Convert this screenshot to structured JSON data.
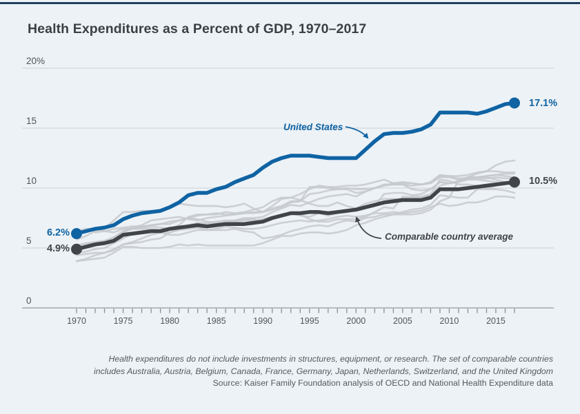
{
  "page": {
    "title": "Health Expenditures as a Percent of GDP, 1970–2017",
    "background_color": "#edf2f6",
    "top_rule_color": "#1f3e5e"
  },
  "annotations": {
    "us_label": "United States",
    "avg_label": "Comparable country average",
    "us_start_label": "6.2%",
    "us_end_label": "17.1%",
    "avg_start_label": "4.9%",
    "avg_end_label": "10.5%"
  },
  "footer": {
    "line1": "Health expenditures do not include investments in structures, equipment, or research. The set of comparable countries",
    "line2": "includes Australia, Austria, Belgium, Canada, France, Germany, Japan, Netherlands, Switzerland, and the United Kingdom",
    "line3": "Source: Kaiser Family Foundation analysis of OECD and National Health Expenditure data"
  },
  "colors": {
    "us": "#0f63a3",
    "average": "#414549",
    "country": "#c6c9cc",
    "grid": "#ccd0d4",
    "axis": "#a2a8ad",
    "tick": "#878d93",
    "axis_text": "#4e555c"
  },
  "chart_data": {
    "type": "line",
    "title": "Health Expenditures as a Percent of GDP, 1970–2017",
    "xlabel": "",
    "ylabel": "",
    "xlim": [
      1970,
      2017
    ],
    "ylim": [
      0,
      20
    ],
    "grid": "horizontal",
    "legend": "inline-annotations",
    "x_start_year": 1970,
    "x_tick_years": [
      1970,
      1975,
      1980,
      1985,
      1990,
      1995,
      2000,
      2005,
      2010,
      2015
    ],
    "x_tick_labels": [
      "1970",
      "1975",
      "1980",
      "1985",
      "1990",
      "1995",
      "2000",
      "2005",
      "2010",
      "2015"
    ],
    "y_ticks": [
      20,
      15,
      10,
      5,
      0
    ],
    "y_tick_labels": [
      "20%",
      "15",
      "10",
      "5",
      "0"
    ],
    "series": [
      {
        "name": "Australia",
        "role": "background",
        "values": [
          4.6,
          4.7,
          4.9,
          5.0,
          5.4,
          5.8,
          6.2,
          6.3,
          6.4,
          6.3,
          6.1,
          6.1,
          6.3,
          6.5,
          6.5,
          6.6,
          6.8,
          6.7,
          6.6,
          6.6,
          6.7,
          6.9,
          7.1,
          7.2,
          7.3,
          7.2,
          7.3,
          7.4,
          7.6,
          7.7,
          7.6,
          7.7,
          7.9,
          7.9,
          8.0,
          7.9,
          8.0,
          8.1,
          8.4,
          8.7,
          8.5,
          8.6,
          8.8,
          8.8,
          9.0,
          9.3,
          9.3,
          9.2
        ]
      },
      {
        "name": "Austria",
        "role": "background",
        "values": [
          5.2,
          5.3,
          5.4,
          5.6,
          5.9,
          6.4,
          6.7,
          6.9,
          7.3,
          7.4,
          7.5,
          7.6,
          7.4,
          7.3,
          7.5,
          7.6,
          7.7,
          7.8,
          7.9,
          7.9,
          8.0,
          8.2,
          8.4,
          8.8,
          8.9,
          9.5,
          9.6,
          9.8,
          9.9,
          10.0,
          9.9,
          9.9,
          10.0,
          10.2,
          10.3,
          10.3,
          10.2,
          10.3,
          10.4,
          10.9,
          10.9,
          10.7,
          10.9,
          10.9,
          11.0,
          11.1,
          11.0,
          10.9
        ]
      },
      {
        "name": "Belgium",
        "role": "background",
        "values": [
          3.9,
          4.1,
          4.4,
          4.6,
          4.8,
          5.3,
          5.5,
          5.8,
          6.1,
          6.3,
          6.3,
          6.6,
          6.7,
          6.9,
          7.0,
          7.0,
          7.2,
          7.3,
          7.4,
          7.4,
          7.2,
          7.5,
          7.7,
          7.9,
          7.7,
          7.6,
          7.9,
          7.7,
          7.9,
          8.1,
          8.1,
          8.3,
          8.5,
          9.5,
          9.6,
          9.6,
          9.4,
          9.5,
          9.9,
          10.5,
          10.4,
          10.5,
          10.7,
          10.7,
          10.6,
          10.5,
          10.4,
          10.3
        ]
      },
      {
        "name": "Canada",
        "role": "background",
        "values": [
          6.4,
          6.6,
          6.6,
          6.4,
          6.3,
          6.6,
          6.6,
          6.6,
          6.6,
          6.5,
          6.6,
          6.9,
          7.6,
          7.8,
          7.8,
          7.8,
          8.0,
          7.9,
          8.0,
          8.2,
          8.4,
          8.9,
          9.2,
          9.2,
          9.0,
          8.7,
          8.5,
          8.5,
          8.8,
          8.5,
          8.3,
          8.7,
          8.9,
          9.1,
          9.1,
          9.1,
          9.3,
          9.3,
          9.5,
          10.7,
          10.6,
          10.3,
          10.3,
          10.2,
          10.0,
          10.2,
          10.4,
          10.4
        ]
      },
      {
        "name": "France",
        "role": "background",
        "values": [
          5.2,
          5.4,
          5.5,
          5.6,
          5.8,
          6.4,
          6.6,
          6.7,
          6.9,
          7.0,
          7.0,
          7.3,
          7.5,
          7.7,
          7.8,
          7.9,
          7.8,
          7.8,
          7.9,
          8.0,
          8.0,
          8.3,
          8.5,
          8.9,
          8.9,
          10.1,
          10.1,
          10.0,
          9.9,
          9.9,
          9.6,
          9.7,
          10.0,
          10.2,
          10.4,
          10.4,
          10.4,
          10.3,
          10.4,
          11.0,
          11.0,
          11.0,
          11.1,
          11.3,
          11.4,
          11.4,
          11.3,
          11.3
        ]
      },
      {
        "name": "Germany",
        "role": "background",
        "values": [
          5.7,
          6.0,
          6.4,
          6.6,
          7.3,
          8.0,
          8.0,
          8.1,
          8.1,
          8.1,
          8.4,
          8.7,
          8.6,
          8.5,
          8.5,
          8.5,
          8.4,
          8.5,
          8.7,
          8.3,
          8.0,
          8.5,
          9.1,
          9.2,
          9.5,
          9.9,
          10.2,
          10.1,
          10.1,
          10.2,
          10.2,
          10.3,
          10.5,
          10.7,
          10.4,
          10.5,
          10.4,
          10.3,
          10.5,
          11.1,
          11.0,
          10.8,
          10.8,
          10.9,
          11.0,
          11.1,
          11.2,
          11.2
        ]
      },
      {
        "name": "Japan",
        "role": "background",
        "values": [
          4.4,
          4.5,
          4.6,
          4.6,
          4.9,
          5.3,
          5.4,
          5.5,
          5.7,
          5.8,
          6.3,
          6.5,
          6.6,
          6.7,
          6.5,
          6.5,
          6.5,
          6.6,
          6.4,
          6.3,
          5.8,
          5.9,
          6.1,
          6.4,
          6.6,
          6.8,
          6.9,
          6.8,
          7.1,
          7.3,
          7.2,
          7.5,
          7.6,
          7.8,
          7.8,
          7.8,
          7.8,
          7.9,
          8.2,
          8.9,
          9.2,
          10.6,
          10.8,
          10.8,
          10.8,
          10.9,
          10.8,
          10.8
        ]
      },
      {
        "name": "Netherlands",
        "role": "background",
        "values": [
          null,
          null,
          6.3,
          6.4,
          6.6,
          6.7,
          6.8,
          6.8,
          6.9,
          7.0,
          7.2,
          7.3,
          7.5,
          7.4,
          7.2,
          7.1,
          7.1,
          7.2,
          7.3,
          7.3,
          7.4,
          7.6,
          7.8,
          7.9,
          7.8,
          7.4,
          7.2,
          7.2,
          7.4,
          7.4,
          7.4,
          7.6,
          8.0,
          8.4,
          8.3,
          9.3,
          9.2,
          9.2,
          9.4,
          10.2,
          10.4,
          10.5,
          10.9,
          10.9,
          10.9,
          10.7,
          10.5,
          10.1
        ]
      },
      {
        "name": "Switzerland",
        "role": "background",
        "values": [
          4.9,
          5.1,
          5.2,
          5.4,
          5.7,
          6.3,
          6.6,
          6.7,
          6.8,
          6.7,
          6.6,
          6.7,
          6.9,
          7.1,
          7.1,
          7.2,
          7.3,
          7.3,
          7.5,
          7.5,
          7.6,
          8.0,
          8.3,
          8.6,
          8.5,
          8.8,
          9.1,
          9.3,
          9.4,
          9.5,
          9.3,
          9.7,
          10.0,
          10.3,
          10.3,
          10.3,
          9.9,
          9.8,
          9.9,
          10.5,
          10.4,
          10.6,
          10.9,
          11.2,
          11.4,
          11.9,
          12.2,
          12.3
        ]
      },
      {
        "name": "United Kingdom",
        "role": "background",
        "values": [
          3.9,
          4.0,
          4.1,
          4.2,
          4.6,
          5.1,
          5.1,
          5.0,
          5.0,
          5.0,
          5.1,
          5.3,
          5.2,
          5.3,
          5.2,
          5.2,
          5.2,
          5.2,
          5.2,
          5.2,
          5.4,
          5.7,
          6.0,
          6.0,
          6.2,
          6.3,
          6.3,
          6.2,
          6.3,
          6.5,
          6.9,
          7.1,
          7.4,
          7.6,
          7.8,
          8.0,
          8.2,
          8.3,
          8.6,
          9.4,
          9.3,
          9.2,
          9.2,
          9.9,
          9.9,
          9.9,
          9.8,
          9.6
        ]
      },
      {
        "name": "Comparable country average",
        "role": "average",
        "color": "#414549",
        "start_value": 4.9,
        "end_value": 10.5,
        "values": [
          4.9,
          5.1,
          5.3,
          5.4,
          5.6,
          6.1,
          6.2,
          6.3,
          6.4,
          6.4,
          6.6,
          6.7,
          6.8,
          6.9,
          6.8,
          6.9,
          7.0,
          7.0,
          7.0,
          7.1,
          7.2,
          7.5,
          7.7,
          7.9,
          7.9,
          8.0,
          8.0,
          7.9,
          8.0,
          8.1,
          8.2,
          8.4,
          8.6,
          8.8,
          8.9,
          9.0,
          9.0,
          9.0,
          9.2,
          9.9,
          9.9,
          9.9,
          10.0,
          10.1,
          10.2,
          10.3,
          10.4,
          10.5
        ]
      },
      {
        "name": "United States",
        "role": "primary",
        "color": "#0f63a3",
        "start_value": 6.2,
        "end_value": 17.1,
        "values": [
          6.2,
          6.4,
          6.6,
          6.7,
          6.9,
          7.4,
          7.7,
          7.9,
          8.0,
          8.1,
          8.4,
          8.8,
          9.4,
          9.6,
          9.6,
          9.9,
          10.1,
          10.5,
          10.8,
          11.1,
          11.7,
          12.2,
          12.5,
          12.7,
          12.7,
          12.7,
          12.6,
          12.5,
          12.5,
          12.5,
          12.5,
          13.2,
          13.9,
          14.5,
          14.6,
          14.6,
          14.7,
          14.9,
          15.3,
          16.3,
          16.3,
          16.3,
          16.3,
          16.2,
          16.4,
          16.7,
          17.0,
          17.1
        ]
      }
    ]
  }
}
